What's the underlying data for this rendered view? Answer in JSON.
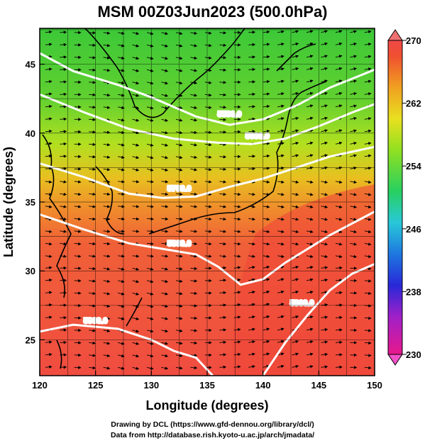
{
  "title": "MSM 00Z03Jun2023 (500.0hPa)",
  "credits": {
    "line1": "Drawing by DCL (https://www.gfd-dennou.org/library/dcl/)",
    "line2": "Data from http://database.rish.kyoto-u.ac.jp/arch/jmadata/"
  },
  "chart_data": {
    "type": "heatmap",
    "title": "MSM 00Z03Jun2023 (500.0hPa)",
    "xlabel": "Longitude (degrees)",
    "ylabel": "Latitude  (degrees)",
    "xlim": [
      120,
      150
    ],
    "ylim": [
      22.4,
      47.6
    ],
    "xticks": [
      120,
      125,
      130,
      135,
      140,
      145,
      150
    ],
    "yticks": [
      25,
      30,
      35,
      40,
      45
    ],
    "grid": true,
    "colorbar": {
      "range": [
        230,
        270
      ],
      "ticks": [
        230,
        238,
        246,
        254,
        262,
        270
      ],
      "colors": [
        "#e8188c",
        "#a020c8",
        "#2828d8",
        "#1e78e0",
        "#28c8d8",
        "#28d060",
        "#90e020",
        "#e8e020",
        "#f0a020",
        "#f05030",
        "#f04848"
      ]
    },
    "contours": {
      "variable": "geopotential height",
      "units": "m",
      "levels": [
        {
          "label": "5500.0",
          "value": 5500
        },
        {
          "label": "5600.0",
          "value": 5600
        },
        {
          "label": "5700.0",
          "value": 5700
        },
        {
          "label": "5800.0",
          "value": 5800
        },
        {
          "label": "5900.0",
          "value": 5900
        },
        {
          "label": "5900.0",
          "value": 5900
        }
      ]
    },
    "field_colors": {
      "north": "#48d038",
      "mid_north": "#a8e020",
      "mid": "#e0c820",
      "mid_south": "#f08a30",
      "south": "#f05040"
    }
  }
}
